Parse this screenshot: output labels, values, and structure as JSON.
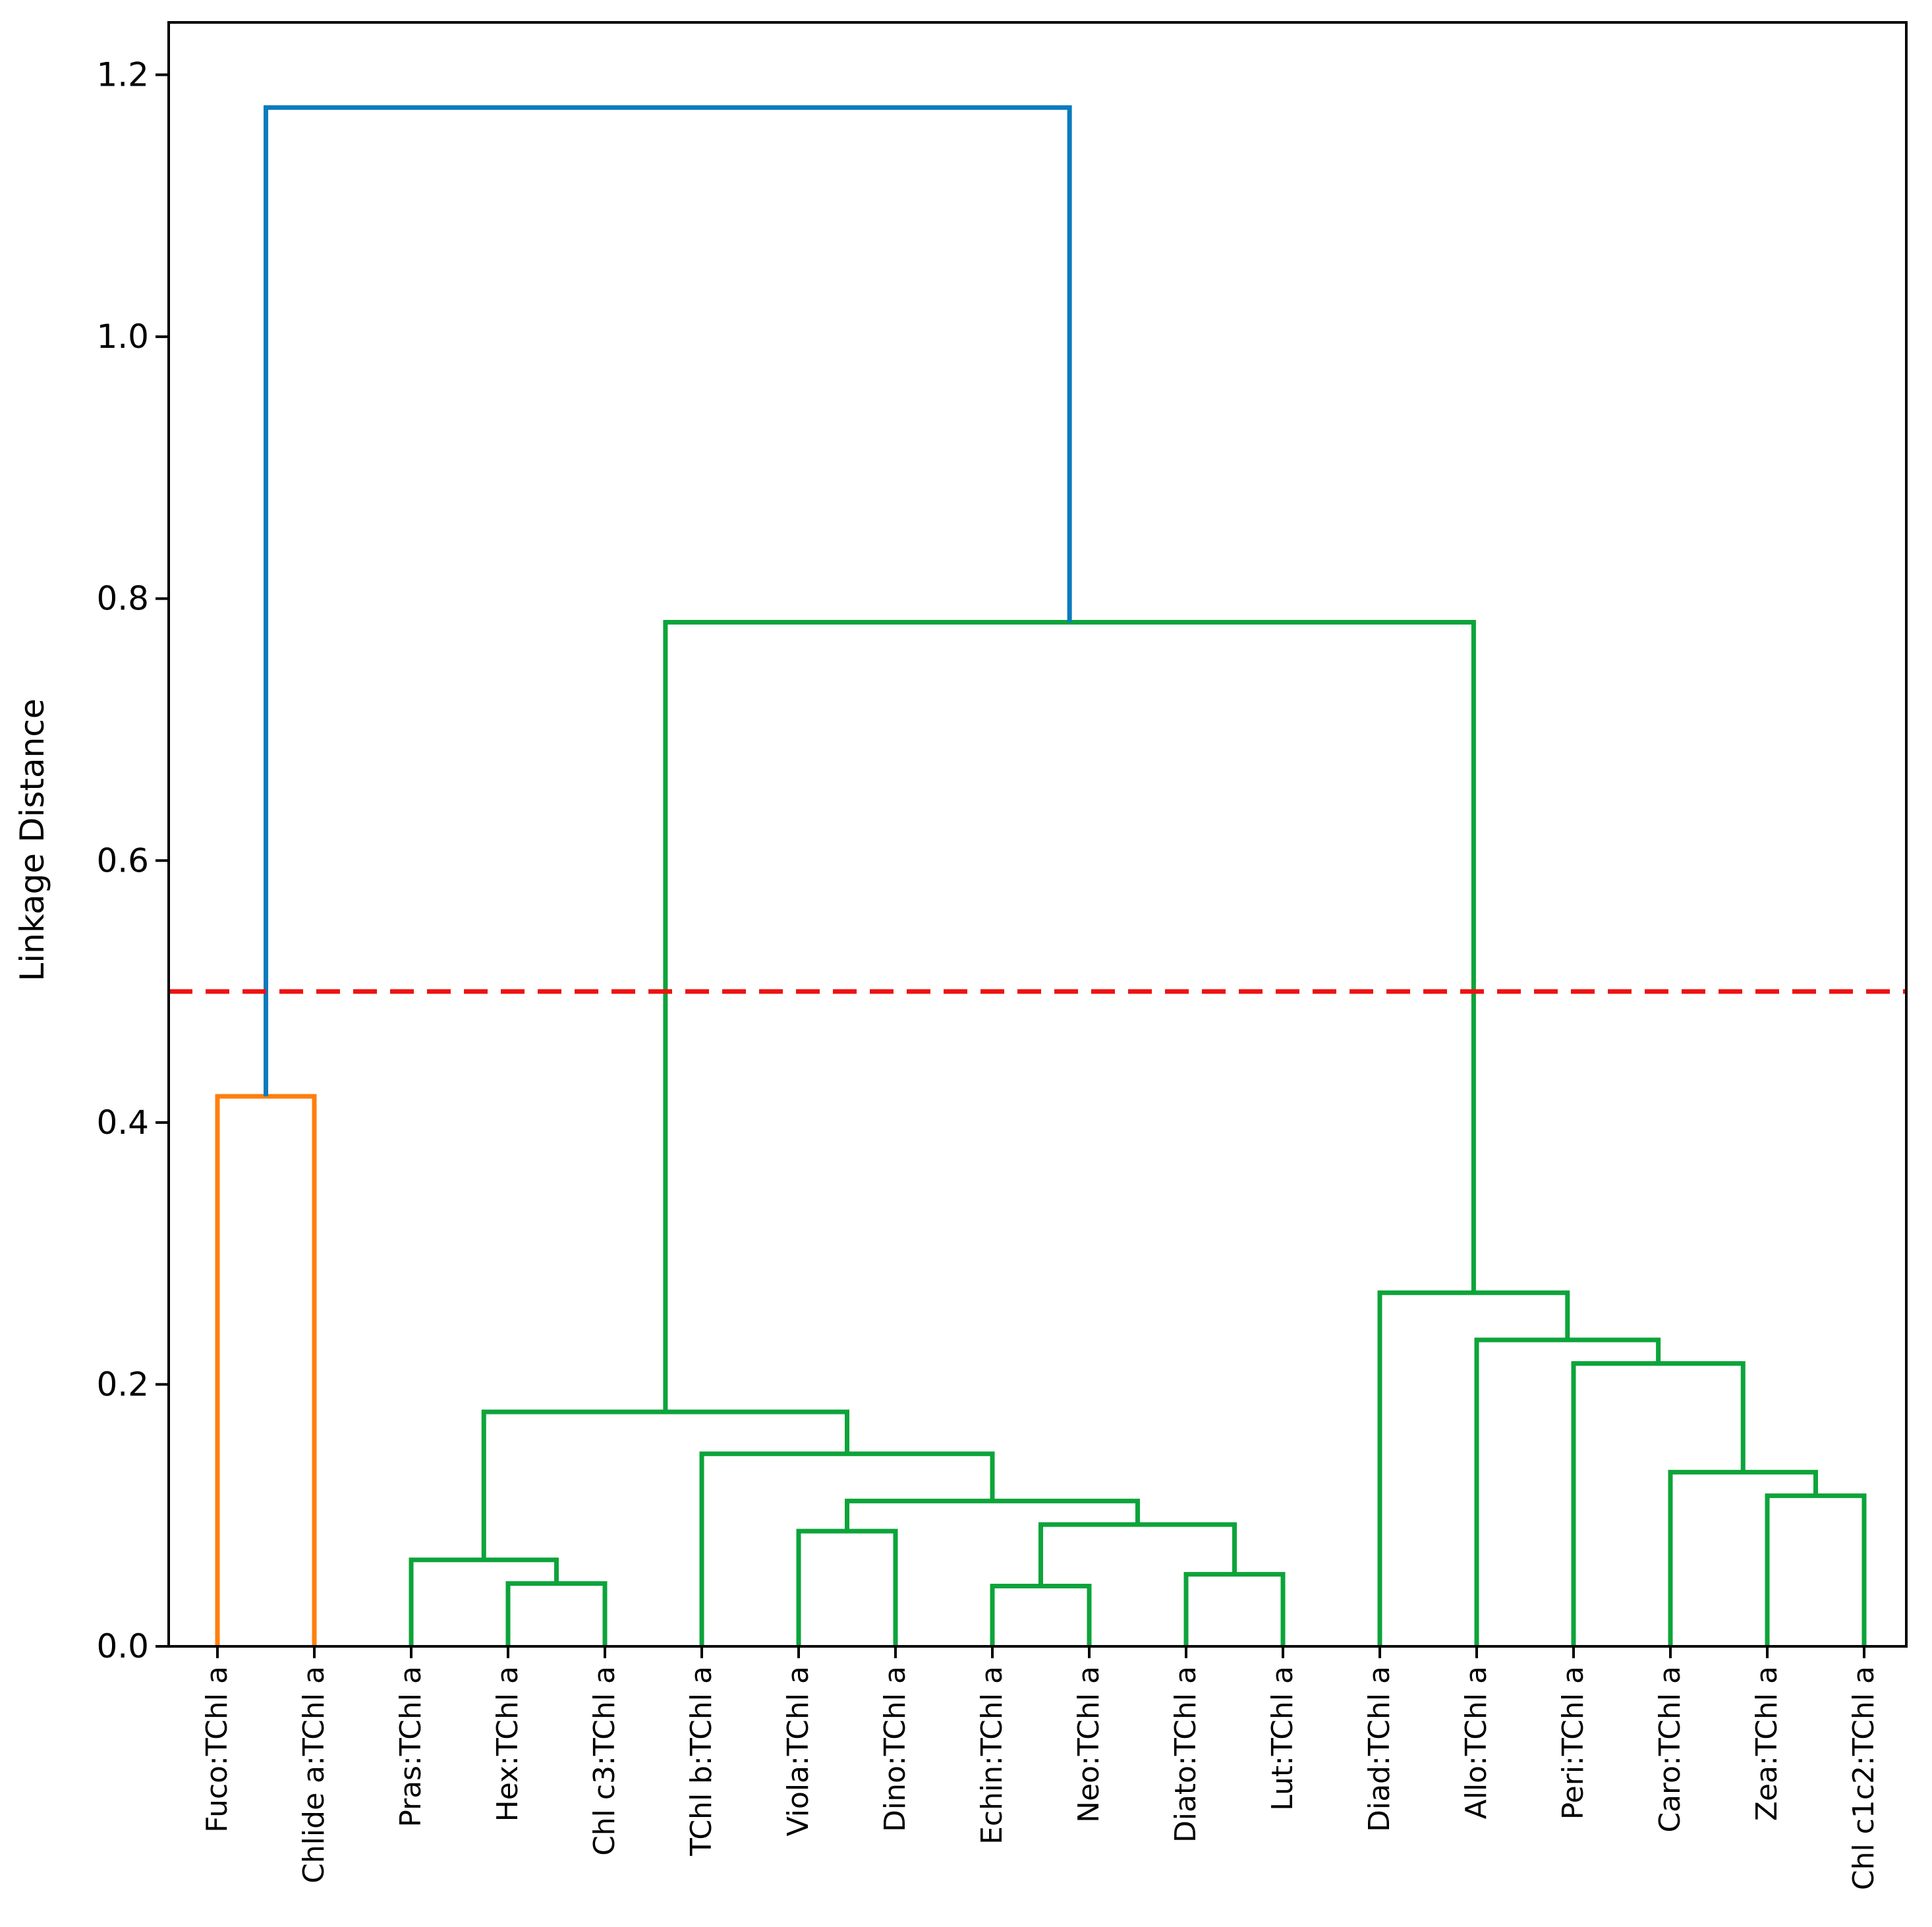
{
  "chart_data": {
    "type": "dendrogram",
    "title": "",
    "xlabel": "",
    "ylabel": "Linkage Distance",
    "ylim": [
      0,
      1.24
    ],
    "yticks": [
      "0.0",
      "0.2",
      "0.4",
      "0.6",
      "0.8",
      "1.0",
      "1.2"
    ],
    "leaves": [
      "Fuco:TChl a",
      "Chlide a:TChl a",
      "Pras:TChl a",
      "Hex:TChl a",
      "Chl c3:TChl a",
      "TChl b:TChl a",
      "Viola:TChl a",
      "Dino:TChl a",
      "Echin:TChl a",
      "Neo:TChl a",
      "Diato:TChl a",
      "Lut:TChl a",
      "Diad:TChl a",
      "Allo:TChl a",
      "Peri:TChl a",
      "Caro:TChl a",
      "Zea:TChl a",
      "Chl c1c2:TChl a"
    ],
    "cutoff": {
      "value": 0.5,
      "style": "dashed",
      "color": "#ee1111"
    },
    "colors": {
      "above_cut": "#0a7bbd",
      "cluster_1": "#ff7f0e",
      "cluster_2": "#0ca43a"
    },
    "merges": [
      {
        "left": "Fuco:TChl a",
        "right": "Chlide a:TChl a",
        "height": 0.42,
        "color": "cluster_1"
      },
      {
        "left": "Hex:TChl a",
        "right": "Chl c3:TChl a",
        "height": 0.048,
        "color": "cluster_2"
      },
      {
        "left": "Pras:TChl a",
        "right": "m2",
        "height": 0.066,
        "color": "cluster_2"
      },
      {
        "left": "Viola:TChl a",
        "right": "Dino:TChl a",
        "height": 0.088,
        "color": "cluster_2"
      },
      {
        "left": "Echin:TChl a",
        "right": "Neo:TChl a",
        "height": 0.046,
        "color": "cluster_2"
      },
      {
        "left": "Diato:TChl a",
        "right": "Lut:TChl a",
        "height": 0.055,
        "color": "cluster_2"
      },
      {
        "left": "m5",
        "right": "m6",
        "height": 0.093,
        "color": "cluster_2"
      },
      {
        "left": "m4",
        "right": "m7",
        "height": 0.111,
        "color": "cluster_2"
      },
      {
        "left": "TChl b:TChl a",
        "right": "m8",
        "height": 0.147,
        "color": "cluster_2"
      },
      {
        "left": "m3",
        "right": "m9",
        "height": 0.179,
        "color": "cluster_2"
      },
      {
        "left": "Zea:TChl a",
        "right": "Chl c1c2:TChl a",
        "height": 0.115,
        "color": "cluster_2"
      },
      {
        "left": "Caro:TChl a",
        "right": "m11",
        "height": 0.133,
        "color": "cluster_2"
      },
      {
        "left": "Peri:TChl a",
        "right": "m12",
        "height": 0.216,
        "color": "cluster_2"
      },
      {
        "left": "Allo:TChl a",
        "right": "m13",
        "height": 0.234,
        "color": "cluster_2"
      },
      {
        "left": "Diad:TChl a",
        "right": "m14",
        "height": 0.27,
        "color": "cluster_2"
      },
      {
        "left": "m10",
        "right": "m15",
        "height": 0.782,
        "color": "cluster_2"
      },
      {
        "left": "m1",
        "right": "m16",
        "height": 1.175,
        "color": "above_cut"
      }
    ]
  }
}
